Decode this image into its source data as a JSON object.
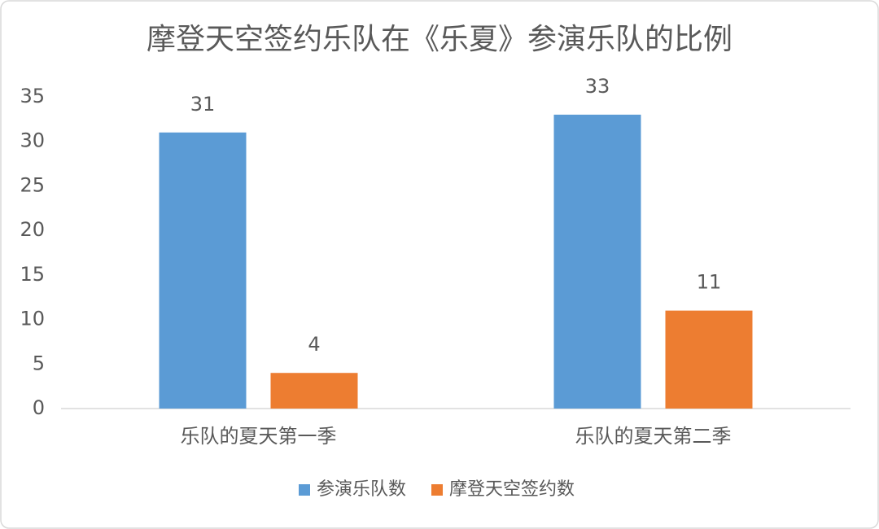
{
  "chart_data": {
    "type": "bar",
    "title": "摩登天空签约乐队在《乐夏》参演乐队的比例",
    "categories": [
      "乐队的夏天第一季",
      "乐队的夏天第二季"
    ],
    "series": [
      {
        "name": "参演乐队数",
        "color": "#5b9bd5",
        "values": [
          31,
          33
        ]
      },
      {
        "name": "摩登天空签约数",
        "color": "#ed7d31",
        "values": [
          4,
          11
        ]
      }
    ],
    "ylim": [
      0,
      35
    ],
    "yticks": [
      0,
      5,
      10,
      15,
      20,
      25,
      30,
      35
    ],
    "grid": false,
    "legend": "bottom",
    "data_labels": true
  }
}
